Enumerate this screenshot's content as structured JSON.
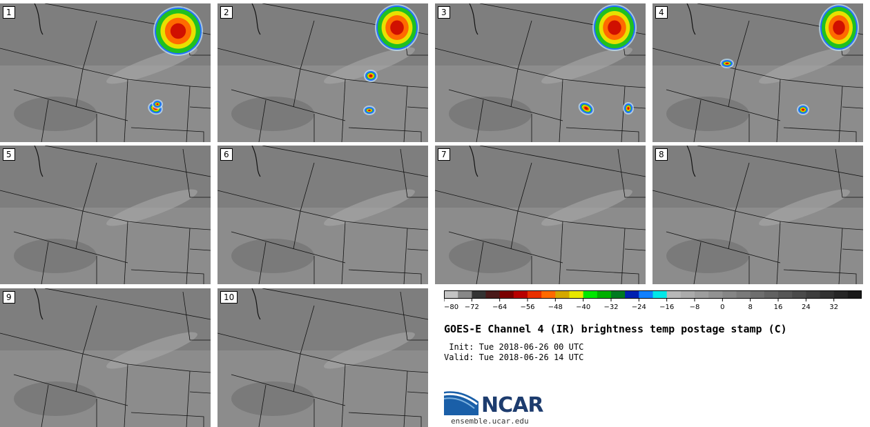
{
  "panels": [
    {
      "label": "1"
    },
    {
      "label": "2"
    },
    {
      "label": "3"
    },
    {
      "label": "4"
    },
    {
      "label": "5"
    },
    {
      "label": "6"
    },
    {
      "label": "7"
    },
    {
      "label": "8"
    },
    {
      "label": "9"
    },
    {
      "label": "10"
    }
  ],
  "colorbar": {
    "ticks": [
      "−80",
      "−72",
      "−64",
      "−56",
      "−48",
      "−40",
      "−32",
      "−24",
      "−16",
      "−8",
      "0",
      "8",
      "16",
      "24",
      "32"
    ],
    "colors": [
      "#c4c4c4",
      "#888888",
      "#333333",
      "#4a1a1a",
      "#7a0000",
      "#b80000",
      "#e83000",
      "#ff6a00",
      "#d4a800",
      "#e8e800",
      "#00e800",
      "#00b000",
      "#007a20",
      "#0020b0",
      "#1080ff",
      "#00e8e8",
      "#b8b8b8",
      "#ababab",
      "#9e9e9e",
      "#929292",
      "#868686",
      "#7a7a7a",
      "#6e6e6e",
      "#626262",
      "#565656",
      "#4a4a4a",
      "#3e3e3e",
      "#323232",
      "#262626",
      "#1a1a1a"
    ]
  },
  "title": "GOES-E Channel 4 (IR) brightness temp postage stamp (C)",
  "init": " Init: Tue 2018-06-26 00 UTC",
  "valid": "Valid: Tue 2018-06-26 14 UTC",
  "logo": {
    "text": "NCAR",
    "site": "ensemble.ucar.edu",
    "accent": "#1a5fa8"
  }
}
